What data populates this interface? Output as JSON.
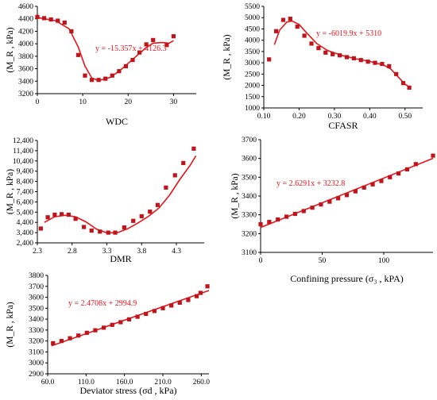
{
  "chart_data": [
    {
      "type": "scatter",
      "title": "",
      "xlabel": "WDC",
      "ylabel": "(M_R , kPa)",
      "xlim": [
        0,
        35
      ],
      "ylim": [
        3200,
        4600
      ],
      "xticks": [
        0,
        10,
        20,
        30
      ],
      "yticks": [
        3200,
        3400,
        3600,
        3800,
        4000,
        4200,
        4400,
        4600
      ],
      "ytick_labels": [
        "3200",
        "3400",
        "3600",
        "3800",
        "4000",
        "4200",
        "4400",
        "4600"
      ],
      "equation": "y = -15.357x + 4126.3",
      "points": [
        [
          0,
          4430
        ],
        [
          1.5,
          4410
        ],
        [
          3,
          4390
        ],
        [
          4.5,
          4370
        ],
        [
          6,
          4340
        ],
        [
          7.5,
          4200
        ],
        [
          9,
          3820
        ],
        [
          10.5,
          3490
        ],
        [
          12,
          3420
        ],
        [
          13.5,
          3420
        ],
        [
          15,
          3440
        ],
        [
          16.5,
          3490
        ],
        [
          18,
          3560
        ],
        [
          19.5,
          3640
        ],
        [
          21,
          3740
        ],
        [
          22.5,
          3860
        ],
        [
          24,
          3990
        ],
        [
          25.5,
          4060
        ],
        [
          28.5,
          3980
        ],
        [
          30,
          4120
        ]
      ],
      "fit": [
        [
          0,
          4420
        ],
        [
          4,
          4370
        ],
        [
          7,
          4240
        ],
        [
          9,
          3950
        ],
        [
          10.5,
          3640
        ],
        [
          12,
          3450
        ],
        [
          13.5,
          3410
        ],
        [
          16,
          3460
        ],
        [
          18,
          3560
        ],
        [
          21,
          3750
        ],
        [
          24,
          3940
        ],
        [
          25.5,
          4010
        ],
        [
          27.5,
          4020
        ],
        [
          29,
          4010
        ],
        [
          30,
          4050
        ]
      ]
    },
    {
      "type": "scatter",
      "title": "",
      "xlabel": "CFASR",
      "ylabel": "(M_R , kPa)",
      "xlim": [
        0.1,
        0.55
      ],
      "ylim": [
        1000,
        5500
      ],
      "xticks": [
        0.1,
        0.2,
        0.3,
        0.4,
        0.5
      ],
      "xtick_labels": [
        "0.10",
        "0.20",
        "0.30",
        "0.40",
        "0.50"
      ],
      "yticks": [
        1000,
        1500,
        2000,
        2500,
        3000,
        3500,
        4000,
        4500,
        5000,
        5500
      ],
      "ytick_labels": [
        "1000",
        "1500",
        "2000",
        "2500",
        "3000",
        "3500",
        "4000",
        "4500",
        "5000",
        "5500"
      ],
      "equation": "y = -6019.9x + 5310",
      "points": [
        [
          0.115,
          3150
        ],
        [
          0.135,
          4400
        ],
        [
          0.155,
          4900
        ],
        [
          0.175,
          4950
        ],
        [
          0.195,
          4600
        ],
        [
          0.215,
          4200
        ],
        [
          0.235,
          3850
        ],
        [
          0.255,
          3650
        ],
        [
          0.275,
          3450
        ],
        [
          0.295,
          3380
        ],
        [
          0.315,
          3330
        ],
        [
          0.335,
          3250
        ],
        [
          0.355,
          3200
        ],
        [
          0.375,
          3120
        ],
        [
          0.395,
          3050
        ],
        [
          0.415,
          3000
        ],
        [
          0.435,
          2950
        ],
        [
          0.455,
          2850
        ],
        [
          0.475,
          2500
        ],
        [
          0.495,
          2100
        ],
        [
          0.512,
          1900
        ]
      ],
      "fit": [
        [
          0.13,
          3800
        ],
        [
          0.145,
          4450
        ],
        [
          0.165,
          4800
        ],
        [
          0.18,
          4850
        ],
        [
          0.2,
          4700
        ],
        [
          0.22,
          4350
        ],
        [
          0.25,
          3850
        ],
        [
          0.28,
          3550
        ],
        [
          0.32,
          3330
        ],
        [
          0.36,
          3180
        ],
        [
          0.4,
          3060
        ],
        [
          0.44,
          2900
        ],
        [
          0.46,
          2720
        ],
        [
          0.48,
          2380
        ],
        [
          0.5,
          2050
        ],
        [
          0.515,
          1900
        ]
      ]
    },
    {
      "type": "scatter",
      "title": "",
      "xlabel": "DMR",
      "ylabel": "(M_R , kPa)",
      "xlim": [
        2.3,
        4.7
      ],
      "ylim": [
        2400,
        12400
      ],
      "xticks": [
        2.3,
        2.8,
        3.3,
        3.8,
        4.3
      ],
      "xtick_labels": [
        "2.3",
        "2.8",
        "3.3",
        "3.8",
        "4.3"
      ],
      "yticks": [
        2400,
        3400,
        4400,
        5400,
        6400,
        7400,
        8400,
        9400,
        10400,
        11400,
        12400
      ],
      "ytick_labels": [
        "2,400",
        "3,400",
        "4,400",
        "5,400",
        "6,400",
        "7,400",
        "8,400",
        "9,400",
        "10,400",
        "11,400",
        "12,400"
      ],
      "equation": "",
      "points": [
        [
          2.35,
          3800
        ],
        [
          2.45,
          4900
        ],
        [
          2.55,
          5150
        ],
        [
          2.65,
          5200
        ],
        [
          2.75,
          5150
        ],
        [
          2.85,
          4750
        ],
        [
          2.97,
          3950
        ],
        [
          3.08,
          3600
        ],
        [
          3.2,
          3500
        ],
        [
          3.32,
          3400
        ],
        [
          3.42,
          3400
        ],
        [
          3.55,
          3900
        ],
        [
          3.68,
          4550
        ],
        [
          3.8,
          5000
        ],
        [
          3.92,
          5450
        ],
        [
          4.03,
          6100
        ],
        [
          4.15,
          7800
        ],
        [
          4.28,
          9000
        ],
        [
          4.4,
          10200
        ],
        [
          4.55,
          11600
        ]
      ],
      "fit": [
        [
          2.4,
          4400
        ],
        [
          2.55,
          4950
        ],
        [
          2.7,
          5100
        ],
        [
          2.85,
          4950
        ],
        [
          3.0,
          4450
        ],
        [
          3.15,
          3750
        ],
        [
          3.3,
          3380
        ],
        [
          3.45,
          3390
        ],
        [
          3.6,
          3780
        ],
        [
          3.75,
          4350
        ],
        [
          3.9,
          5000
        ],
        [
          4.05,
          5800
        ],
        [
          4.2,
          7050
        ],
        [
          4.35,
          8600
        ],
        [
          4.5,
          10000
        ],
        [
          4.58,
          10900
        ]
      ]
    },
    {
      "type": "scatter",
      "title": "",
      "xlabel": "Confining pressure (σ₃ , kPA)",
      "ylabel": "(M_R , kPa)",
      "xlim": [
        0,
        140
      ],
      "ylim": [
        3100,
        3700
      ],
      "xticks": [
        0,
        50,
        100
      ],
      "yticks": [
        3100,
        3200,
        3300,
        3400,
        3500,
        3600,
        3700
      ],
      "ytick_labels": [
        "3100",
        "3200",
        "3300",
        "3400",
        "3500",
        "3600",
        "3700"
      ],
      "equation": "y = 2.6291x + 3232.8",
      "points": [
        [
          0,
          3250
        ],
        [
          7,
          3262
        ],
        [
          14,
          3275
        ],
        [
          21,
          3290
        ],
        [
          28,
          3305
        ],
        [
          35,
          3320
        ],
        [
          42,
          3338
        ],
        [
          49,
          3355
        ],
        [
          56,
          3370
        ],
        [
          63,
          3388
        ],
        [
          70,
          3405
        ],
        [
          77,
          3425
        ],
        [
          84,
          3445
        ],
        [
          91,
          3462
        ],
        [
          98,
          3480
        ],
        [
          105,
          3500
        ],
        [
          112,
          3520
        ],
        [
          119,
          3542
        ],
        [
          126,
          3570
        ],
        [
          140,
          3615
        ]
      ],
      "fit": [
        [
          0,
          3232.8
        ],
        [
          140,
          3600.9
        ]
      ]
    },
    {
      "type": "scatter",
      "title": "",
      "xlabel": "Deviator stress (σd , kPa)",
      "ylabel": "(M_R , kPa)",
      "xlim": [
        60,
        270
      ],
      "ylim": [
        2900,
        3800
      ],
      "xticks": [
        60,
        110,
        160,
        210,
        260
      ],
      "xtick_labels": [
        "60.0",
        "110.0",
        "160.0",
        "210.0",
        "260.0"
      ],
      "yticks": [
        2900,
        3000,
        3100,
        3200,
        3300,
        3400,
        3500,
        3600,
        3700,
        3800
      ],
      "ytick_labels": [
        "2900",
        "3000",
        "3100",
        "3200",
        "3300",
        "3400",
        "3500",
        "3600",
        "3700",
        "3800"
      ],
      "equation": "y = 2.4708x + 2994.9",
      "points": [
        [
          67,
          3180
        ],
        [
          78,
          3200
        ],
        [
          89,
          3225
        ],
        [
          100,
          3250
        ],
        [
          111,
          3275
        ],
        [
          122,
          3298
        ],
        [
          133,
          3322
        ],
        [
          144,
          3348
        ],
        [
          155,
          3372
        ],
        [
          166,
          3398
        ],
        [
          177,
          3422
        ],
        [
          188,
          3448
        ],
        [
          199,
          3474
        ],
        [
          210,
          3500
        ],
        [
          221,
          3525
        ],
        [
          232,
          3550
        ],
        [
          243,
          3575
        ],
        [
          254,
          3610
        ],
        [
          259,
          3640
        ],
        [
          268,
          3700
        ]
      ],
      "fit": [
        [
          65,
          3155.5
        ],
        [
          270,
          3662.0
        ]
      ]
    }
  ]
}
